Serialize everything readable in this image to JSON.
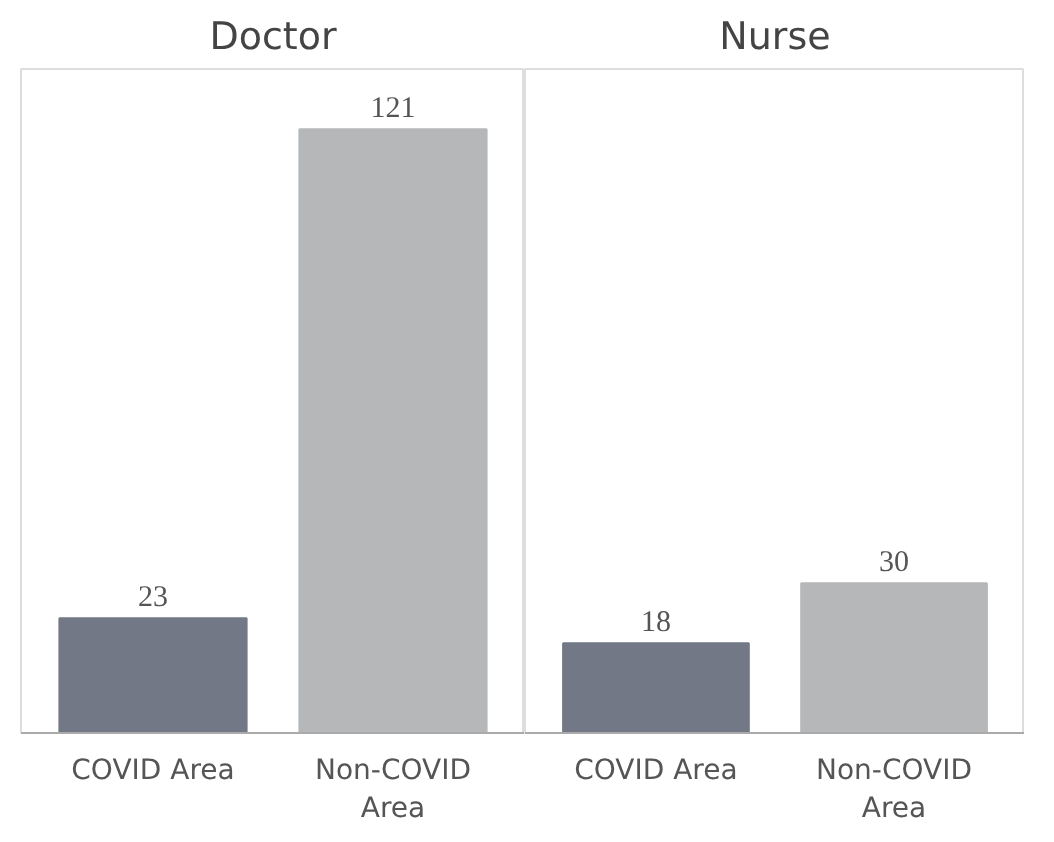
{
  "chart_data": [
    {
      "type": "bar",
      "title": "Doctor",
      "categories": [
        "COVID Area",
        "Non-COVID Area"
      ],
      "values": [
        23,
        121
      ],
      "colors": [
        "#737886",
        "#b5b7b9"
      ],
      "data_labels": true,
      "grid": false
    },
    {
      "type": "bar",
      "title": "Nurse",
      "categories": [
        "COVID Area",
        "Non-COVID Area"
      ],
      "values": [
        18,
        30
      ],
      "colors": [
        "#737886",
        "#b5b7b9"
      ],
      "data_labels": true,
      "grid": false
    }
  ]
}
